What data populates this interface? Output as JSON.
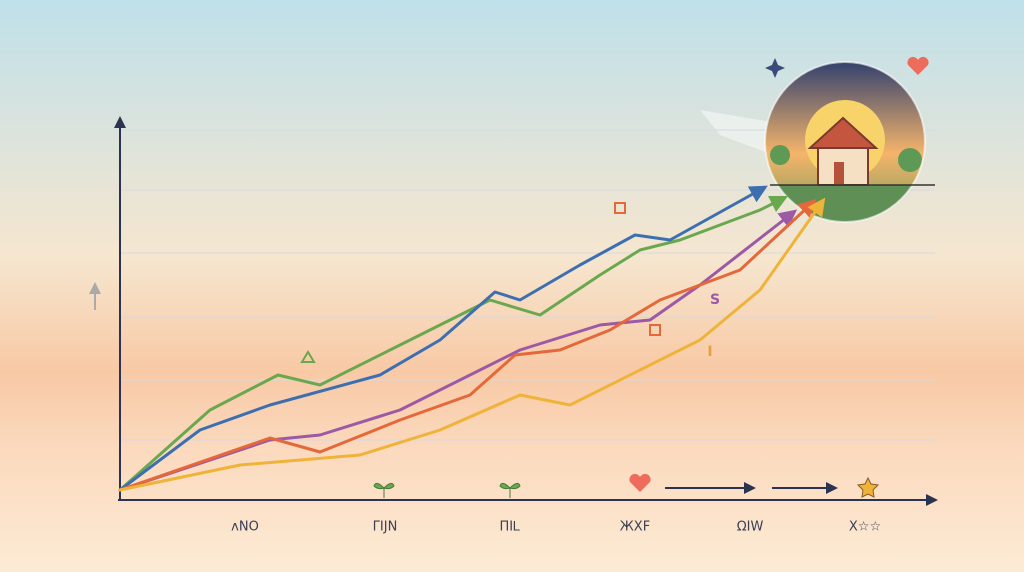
{
  "chart_data": {
    "type": "line",
    "categories": [
      "ᴧNO",
      "ΓIJN",
      "ΠIᏞ",
      "ЖXF",
      "ΩIW",
      "X☆☆"
    ],
    "annotations": [
      "S",
      "I"
    ],
    "xlim": [
      0,
      820
    ],
    "ylim": [
      0,
      370
    ],
    "series": [
      {
        "color": "#6aa84f",
        "x": [
          0,
          90,
          158,
          200,
          280,
          370,
          420,
          480,
          520,
          560,
          640,
          660
        ],
        "values": [
          0,
          80,
          115,
          105,
          145,
          190,
          175,
          215,
          240,
          250,
          280,
          290
        ]
      },
      {
        "color": "#3d6fb0",
        "x": [
          0,
          80,
          150,
          260,
          320,
          375,
          400,
          460,
          515,
          550,
          640
        ],
        "values": [
          0,
          60,
          85,
          115,
          150,
          198,
          190,
          225,
          255,
          250,
          300
        ]
      },
      {
        "color": "#9b59a6",
        "x": [
          0,
          150,
          200,
          280,
          350,
          400,
          480,
          530,
          580,
          670
        ],
        "values": [
          0,
          50,
          55,
          80,
          115,
          140,
          165,
          170,
          205,
          275
        ]
      },
      {
        "color": "#e5683a",
        "x": [
          0,
          150,
          200,
          280,
          350,
          395,
          440,
          490,
          540,
          580,
          620,
          690
        ],
        "values": [
          0,
          52,
          38,
          70,
          95,
          135,
          140,
          160,
          190,
          205,
          220,
          285
        ]
      },
      {
        "color": "#f0b33a",
        "x": [
          0,
          120,
          240,
          320,
          400,
          450,
          520,
          580,
          640,
          700
        ],
        "values": [
          0,
          25,
          35,
          60,
          95,
          85,
          120,
          150,
          200,
          285
        ]
      }
    ]
  }
}
